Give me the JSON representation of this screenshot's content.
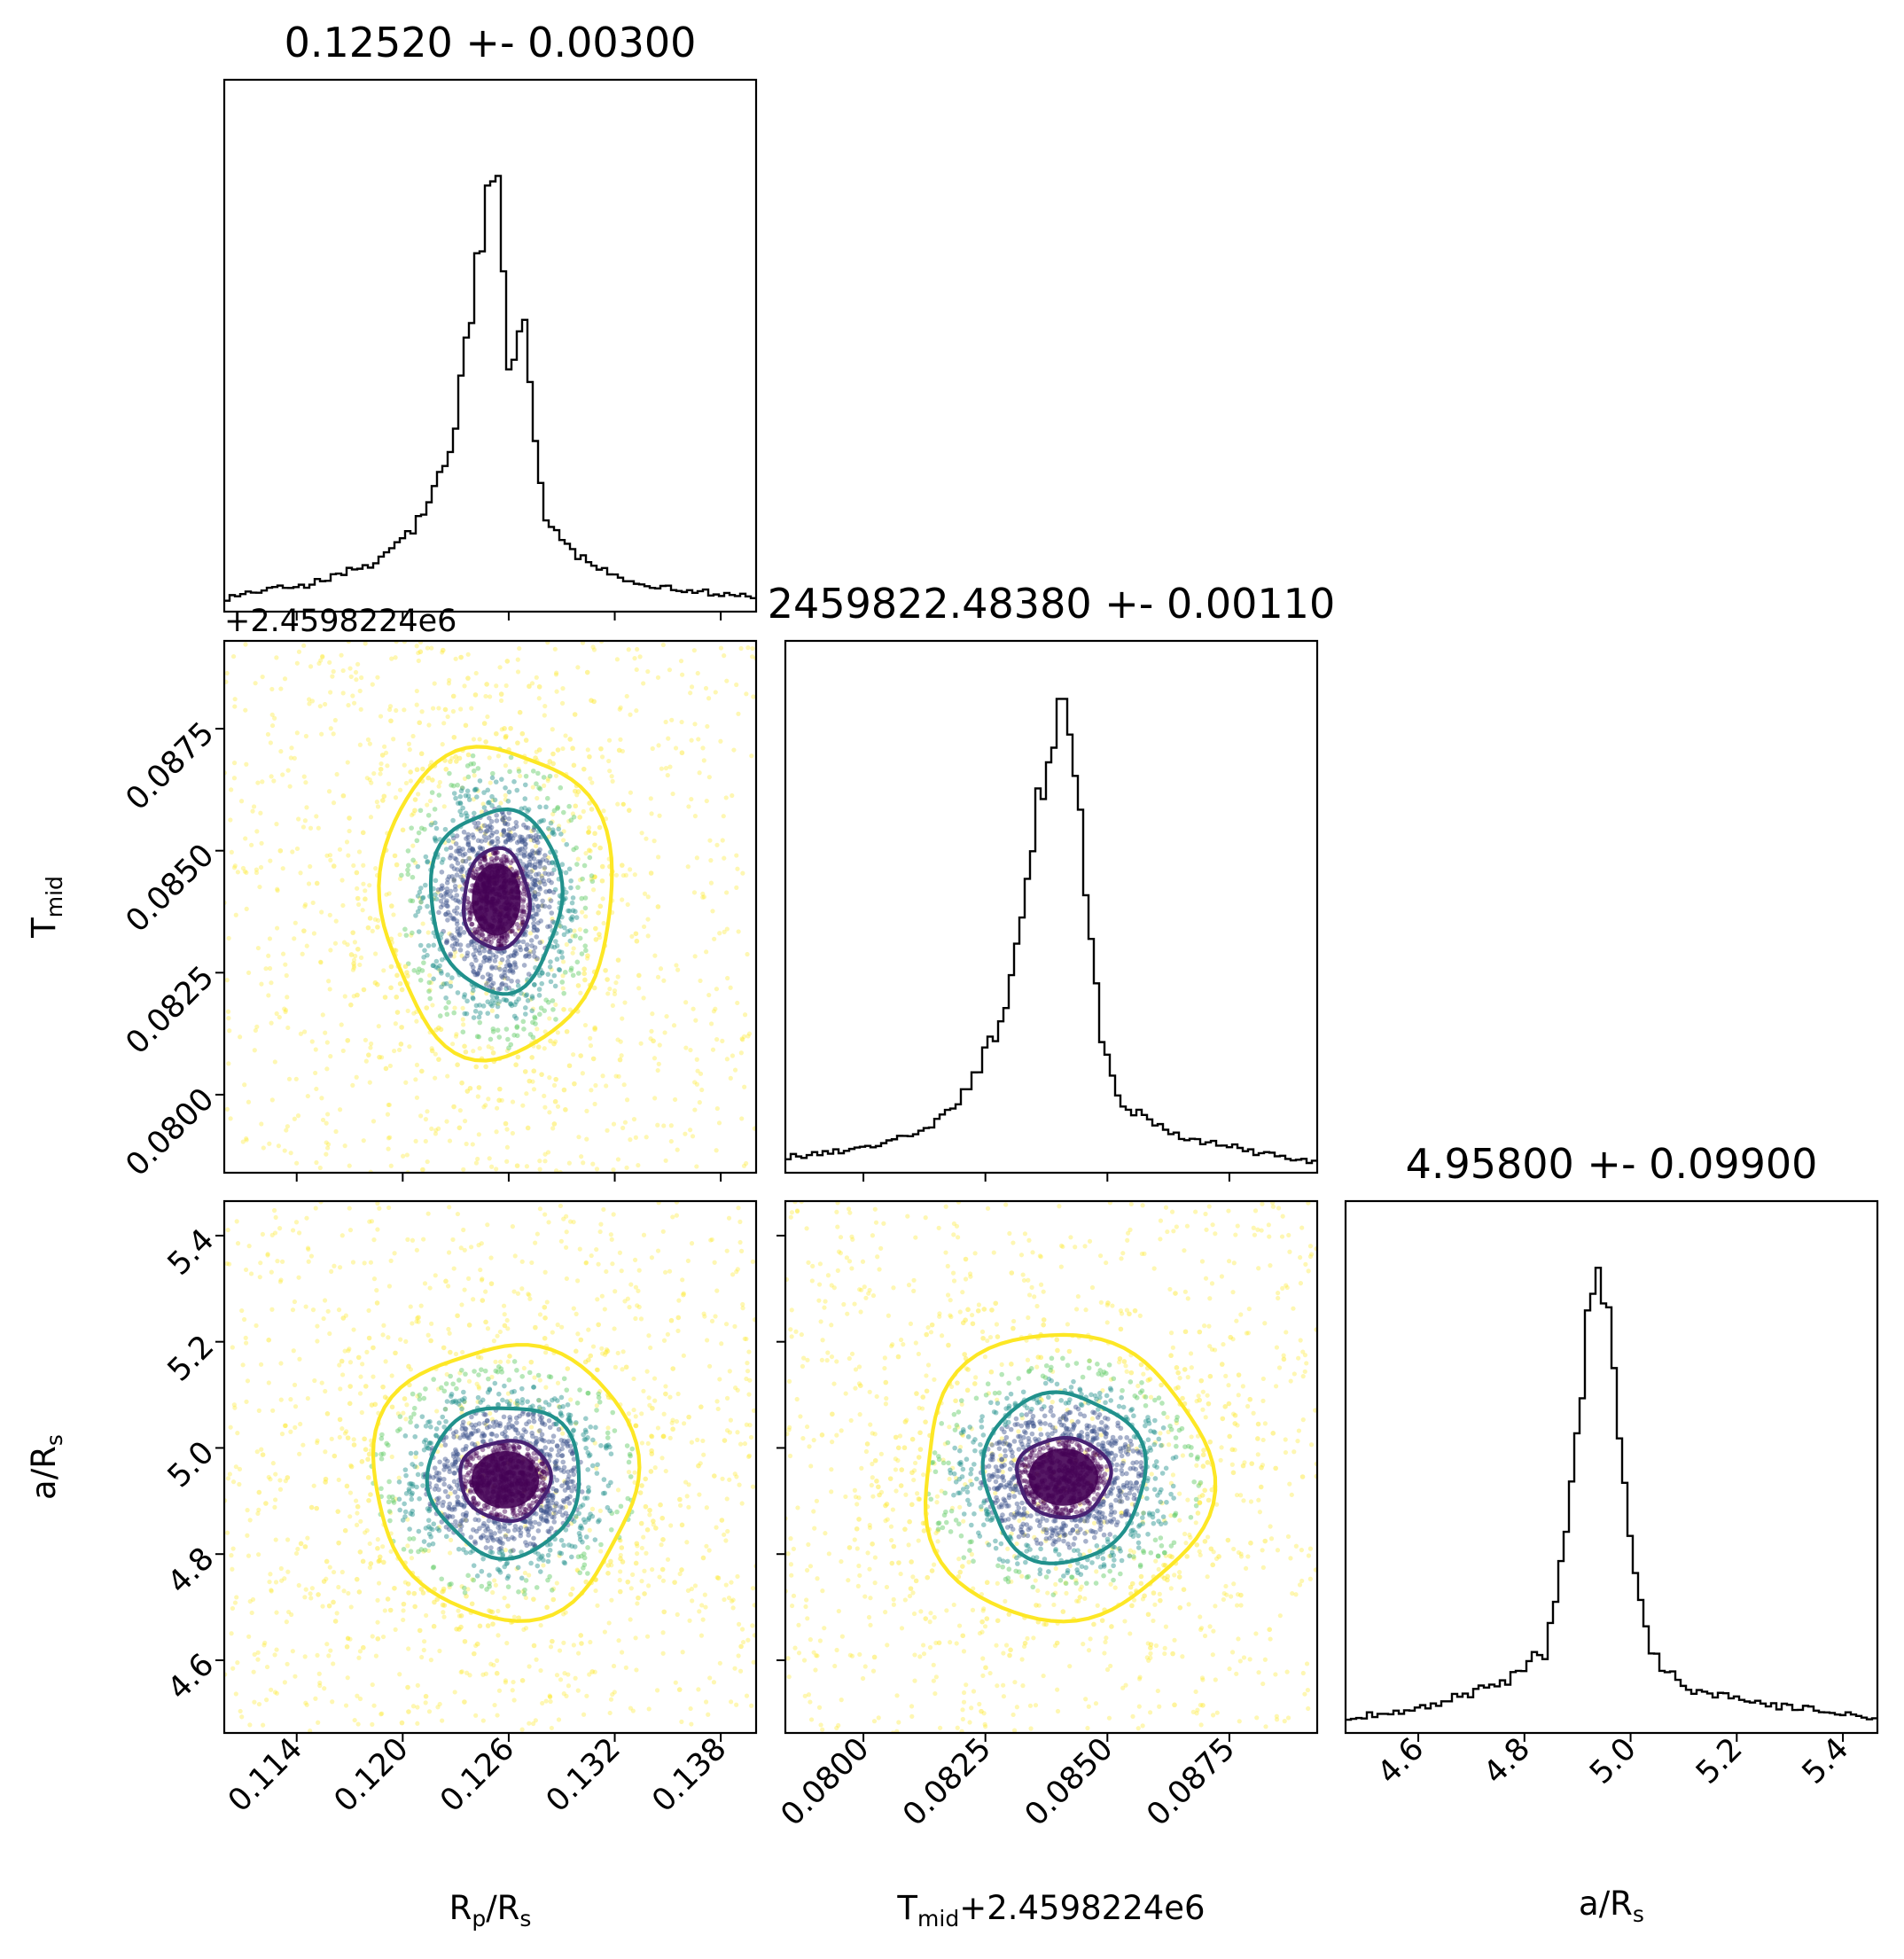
{
  "chart_data": {
    "type": "corner",
    "parameters": [
      {
        "key": "rp",
        "name": "Rp/Rs",
        "label_main": "R",
        "label_sub": "p",
        "label_tail": "/R",
        "label_sub2": "s",
        "mean": 0.1252,
        "title": "0.12520 +- 0.00300",
        "lim": [
          0.1099,
          0.14
        ],
        "ticks": [
          0.114,
          0.12,
          0.126,
          0.132,
          0.138
        ],
        "tick_labels": [
          "0.114",
          "0.120",
          "0.126",
          "0.132",
          "0.138"
        ]
      },
      {
        "key": "tmid",
        "name": "Tmid",
        "label_main": "T",
        "label_sub": "mid",
        "label_tail": "",
        "label_sub2": "",
        "mean": 0.0838,
        "title": "2459822.48380 +- 0.00110",
        "offset": "+2.4598224e6",
        "lim": [
          0.0784,
          0.0893
        ],
        "ticks": [
          0.08,
          0.0825,
          0.085,
          0.0875
        ],
        "tick_labels": [
          "0.0800",
          "0.0825",
          "0.0850",
          "0.0875"
        ]
      },
      {
        "key": "ars",
        "name": "a/Rs",
        "label_main": "a/R",
        "label_sub": "s",
        "label_tail": "",
        "label_sub2": "",
        "mean": 4.958,
        "title": "4.95800 +- 0.09900",
        "lim": [
          4.463,
          5.465
        ],
        "ticks": [
          4.6,
          4.8,
          5.0,
          5.2,
          5.4
        ],
        "tick_labels": [
          "4.6",
          "4.8",
          "5.0",
          "5.2",
          "5.4"
        ]
      }
    ],
    "histograms": [
      {
        "param": "rp",
        "bins": 100,
        "peak_x": 0.1257,
        "shape_points": [
          [
            0.1099,
            0.03
          ],
          [
            0.115,
            0.06
          ],
          [
            0.1185,
            0.1
          ],
          [
            0.121,
            0.19
          ],
          [
            0.1228,
            0.33
          ],
          [
            0.1238,
            0.62
          ],
          [
            0.1246,
            0.8
          ],
          [
            0.1252,
            0.98
          ],
          [
            0.1258,
            0.62
          ],
          [
            0.1262,
            0.46
          ],
          [
            0.1268,
            0.68
          ],
          [
            0.1274,
            0.36
          ],
          [
            0.1282,
            0.18
          ],
          [
            0.13,
            0.11
          ],
          [
            0.133,
            0.06
          ],
          [
            0.14,
            0.03
          ]
        ]
      },
      {
        "param": "tmid",
        "bins": 100,
        "peak_x": 0.084,
        "shape_points": [
          [
            0.0784,
            0.03
          ],
          [
            0.08,
            0.05
          ],
          [
            0.0813,
            0.09
          ],
          [
            0.0822,
            0.18
          ],
          [
            0.0829,
            0.34
          ],
          [
            0.0833,
            0.58
          ],
          [
            0.0836,
            0.78
          ],
          [
            0.0839,
            0.93
          ],
          [
            0.0841,
            0.98
          ],
          [
            0.0844,
            0.84
          ],
          [
            0.0846,
            0.52
          ],
          [
            0.0849,
            0.27
          ],
          [
            0.0853,
            0.14
          ],
          [
            0.0863,
            0.08
          ],
          [
            0.0893,
            0.02
          ]
        ]
      },
      {
        "param": "ars",
        "bins": 100,
        "peak_x": 4.944,
        "shape_points": [
          [
            4.463,
            0.03
          ],
          [
            4.6,
            0.05
          ],
          [
            4.75,
            0.1
          ],
          [
            4.84,
            0.17
          ],
          [
            4.88,
            0.4
          ],
          [
            4.905,
            0.68
          ],
          [
            4.925,
            0.88
          ],
          [
            4.944,
            0.98
          ],
          [
            4.96,
            0.83
          ],
          [
            4.98,
            0.62
          ],
          [
            5.01,
            0.33
          ],
          [
            5.04,
            0.17
          ],
          [
            5.1,
            0.09
          ],
          [
            5.25,
            0.06
          ],
          [
            5.465,
            0.03
          ]
        ]
      }
    ],
    "contours": [
      {
        "pair": [
          "rp",
          "tmid"
        ],
        "center": [
          0.1253,
          0.084
        ],
        "levels": [
          {
            "name": "inner",
            "color": "#482173",
            "rx": 0.00185,
            "ry": 0.00103
          },
          {
            "name": "middle",
            "color": "#21918c",
            "rx": 0.0037,
            "ry": 0.00187
          },
          {
            "name": "outer",
            "color": "#fde725",
            "rx": 0.00655,
            "ry": 0.00318
          }
        ]
      },
      {
        "pair": [
          "rp",
          "ars"
        ],
        "center": [
          0.1258,
          4.94
        ],
        "levels": [
          {
            "name": "inner",
            "color": "#482173",
            "rx": 0.00255,
            "ry": 0.075
          },
          {
            "name": "middle",
            "color": "#21918c",
            "rx": 0.0043,
            "ry": 0.142
          },
          {
            "name": "outer",
            "color": "#fde725",
            "rx": 0.00745,
            "ry": 0.258
          }
        ]
      },
      {
        "pair": [
          "tmid",
          "ars"
        ],
        "center": [
          0.0841,
          4.945
        ],
        "levels": [
          {
            "name": "inner",
            "color": "#482173",
            "rx": 0.00095,
            "ry": 0.075
          },
          {
            "name": "middle",
            "color": "#21918c",
            "rx": 0.00165,
            "ry": 0.16
          },
          {
            "name": "outer",
            "color": "#fde725",
            "rx": 0.00295,
            "ry": 0.27
          }
        ]
      }
    ],
    "scatter_colors": [
      "#440154",
      "#3b528b",
      "#21918c",
      "#5ec962",
      "#fde725"
    ],
    "axis_offset_text": "+2.4598224e6",
    "xlabels": {
      "rp": "Rp/Rs",
      "tmid": "Tmid+2.4598224e6",
      "ars": "a/Rs"
    },
    "ylabels": {
      "tmid": "Tmid",
      "ars": "a/Rs"
    },
    "grid": false,
    "legend": "none"
  }
}
